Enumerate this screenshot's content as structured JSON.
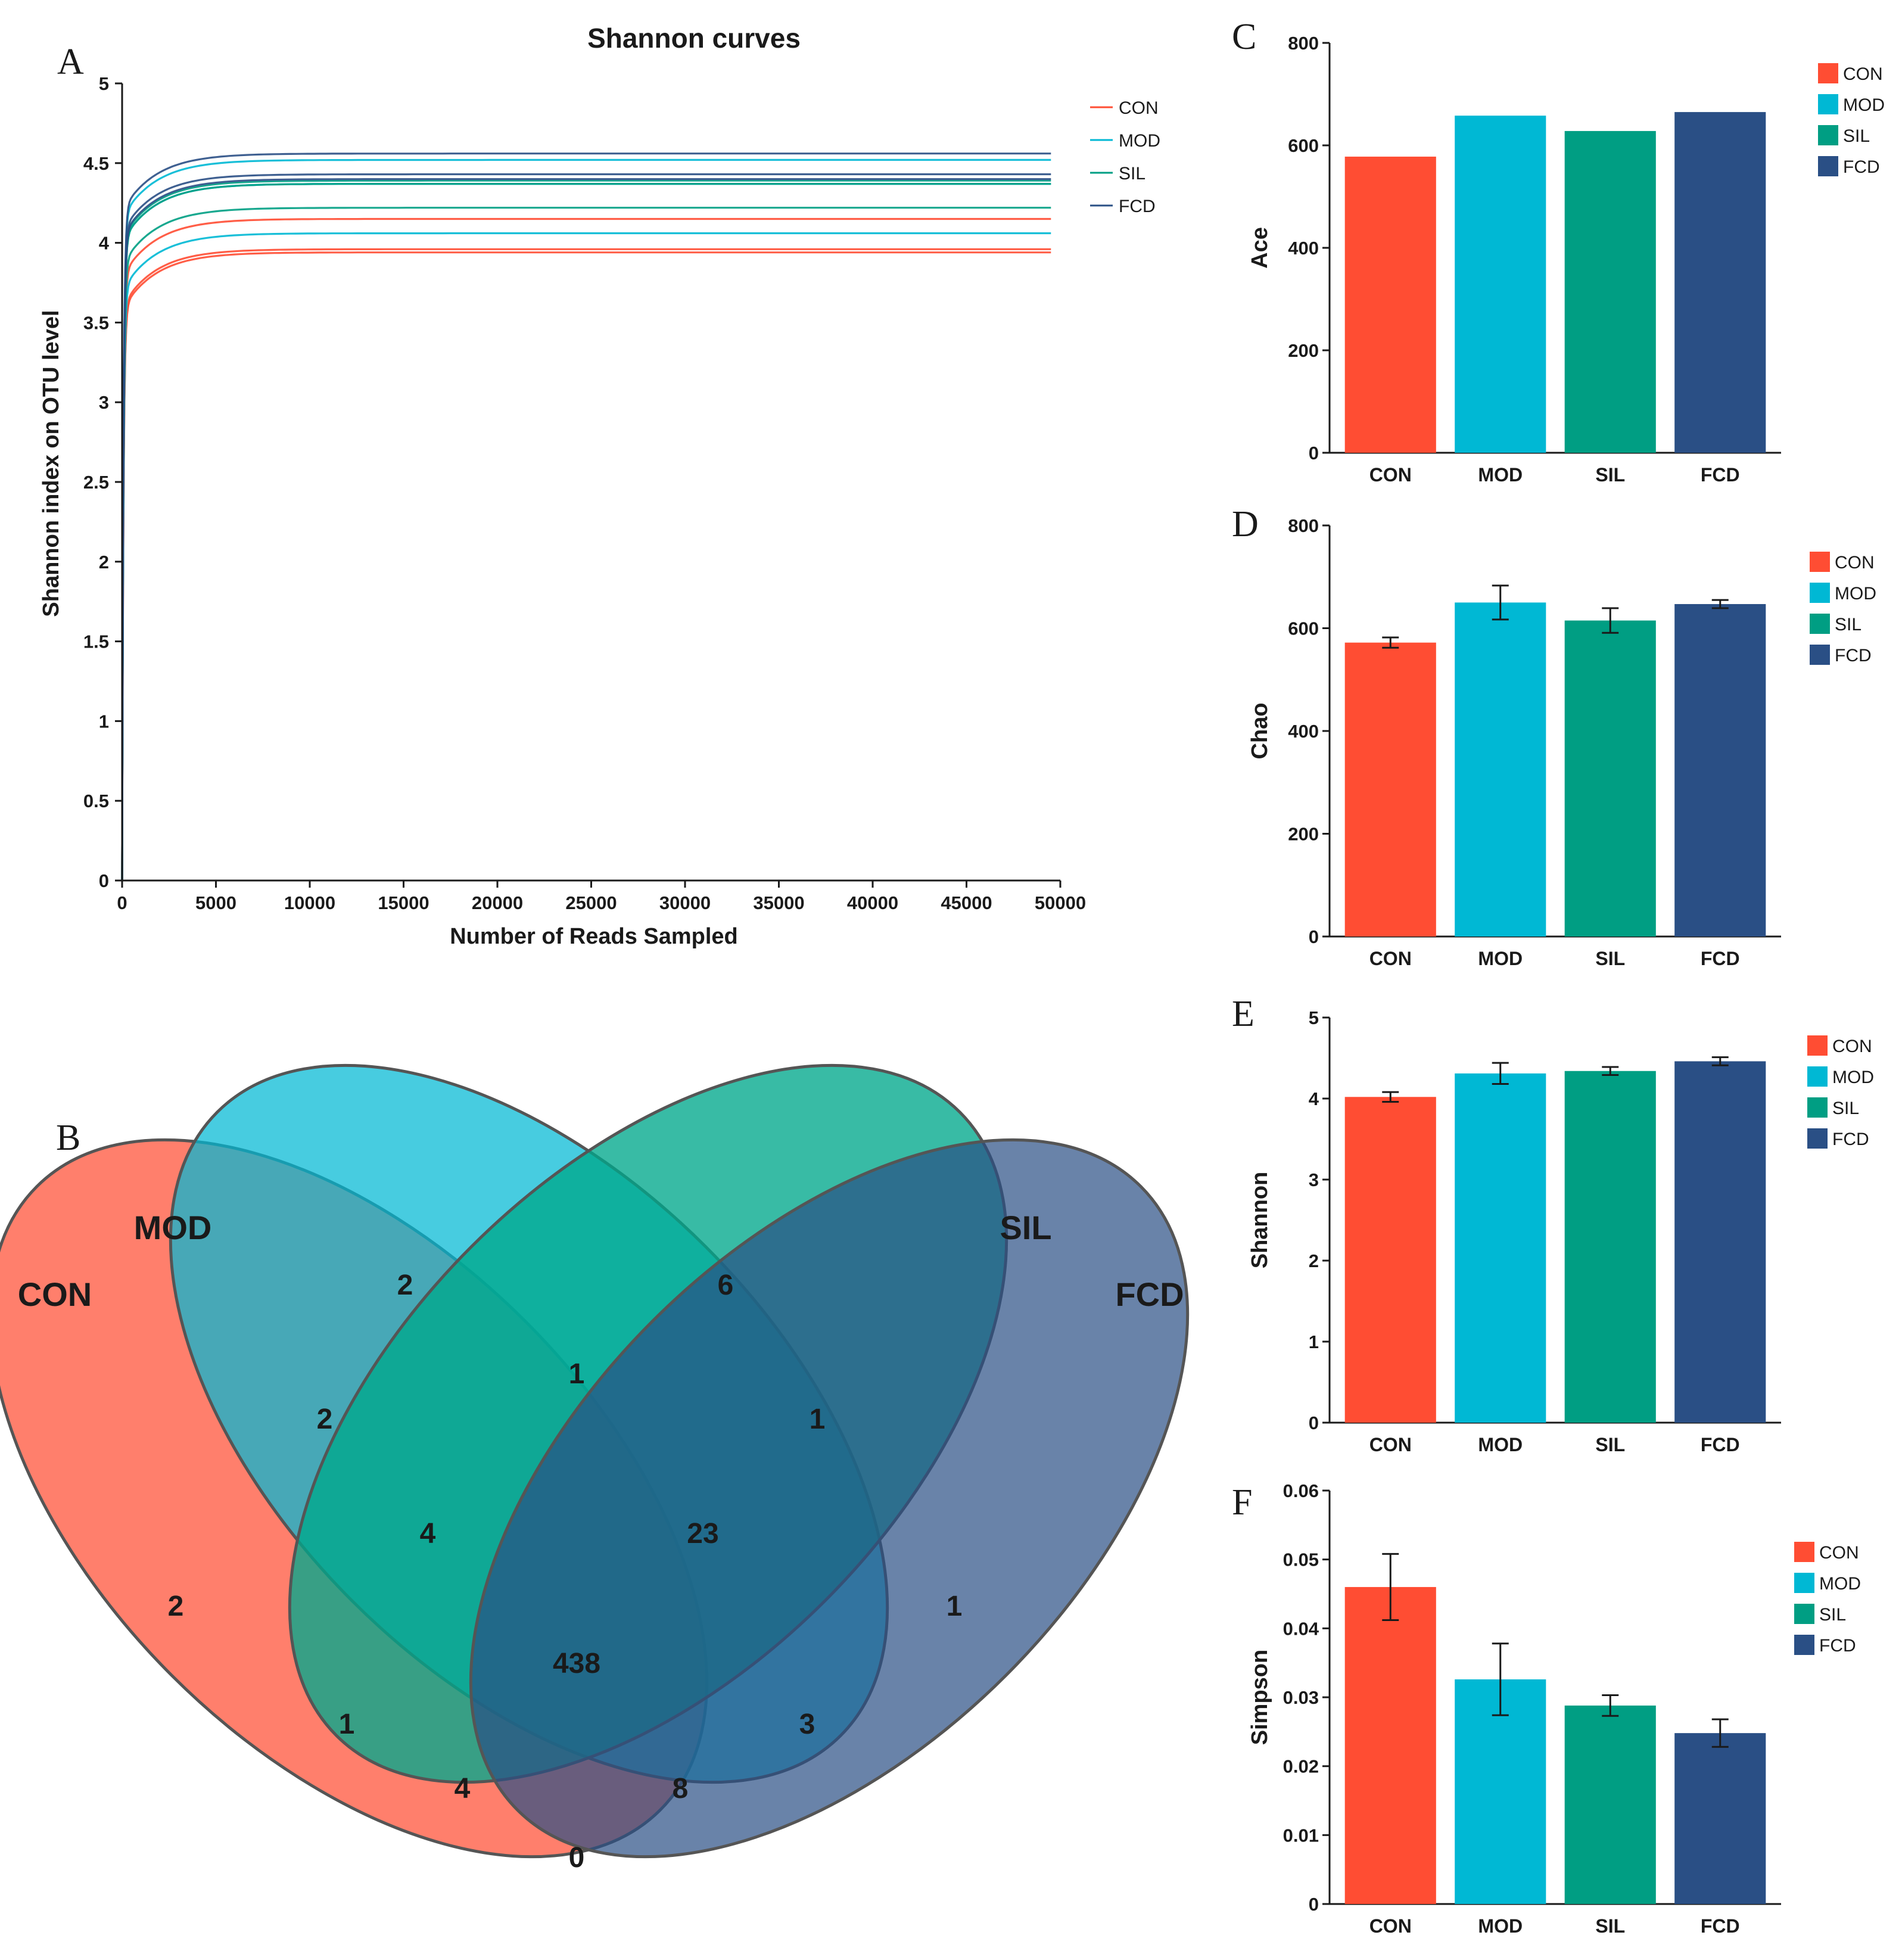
{
  "panel_letters": {
    "a": "A",
    "b": "B",
    "c": "C",
    "d": "D",
    "e": "E",
    "f": "F"
  },
  "colors": {
    "CON": "#ff4d33",
    "MOD": "#00b8d4",
    "SIL": "#009e83",
    "FCD": "#2a4f85"
  },
  "chart_data": [
    {
      "type": "line",
      "title": "Shannon curves",
      "xlabel": "Number of Reads Sampled",
      "ylabel": "Shannon index on OTU level",
      "xlim": [
        0,
        50000
      ],
      "ylim": [
        0,
        5
      ],
      "xticks": [
        "0",
        "5000",
        "10000",
        "15000",
        "20000",
        "25000",
        "30000",
        "35000",
        "40000",
        "45000",
        "50000"
      ],
      "yticks": [
        "0",
        "0.5",
        "1",
        "1.5",
        "2",
        "2.5",
        "3",
        "3.5",
        "4",
        "4.5",
        "5"
      ],
      "legend": [
        "CON",
        "MOD",
        "SIL",
        "FCD"
      ],
      "x_end": 49500,
      "series": [
        {
          "name": "CON",
          "plateaus": [
            3.94,
            3.96,
            4.15
          ]
        },
        {
          "name": "MOD",
          "plateaus": [
            4.06,
            4.37,
            4.52
          ]
        },
        {
          "name": "SIL",
          "plateaus": [
            4.22,
            4.37,
            4.39
          ]
        },
        {
          "name": "FCD",
          "plateaus": [
            4.4,
            4.43,
            4.56
          ]
        }
      ]
    },
    {
      "type": "bar",
      "ylabel": "Ace",
      "ylim": [
        0,
        800
      ],
      "yticks": [
        "0",
        "200",
        "400",
        "600",
        "800"
      ],
      "categories": [
        "CON",
        "MOD",
        "SIL",
        "FCD"
      ],
      "values": [
        578,
        658,
        628,
        665
      ],
      "errors": null,
      "legend": [
        "CON",
        "MOD",
        "SIL",
        "FCD"
      ]
    },
    {
      "type": "bar",
      "ylabel": "Chao",
      "ylim": [
        0,
        800
      ],
      "yticks": [
        "0",
        "200",
        "400",
        "600",
        "800"
      ],
      "categories": [
        "CON",
        "MOD",
        "SIL",
        "FCD"
      ],
      "values": [
        572,
        650,
        615,
        647
      ],
      "errors": [
        10,
        33,
        24,
        8
      ],
      "legend": [
        "CON",
        "MOD",
        "SIL",
        "FCD"
      ]
    },
    {
      "type": "bar",
      "ylabel": "Shannon",
      "ylim": [
        0,
        5
      ],
      "yticks": [
        "0",
        "1",
        "2",
        "3",
        "4",
        "5"
      ],
      "categories": [
        "CON",
        "MOD",
        "SIL",
        "FCD"
      ],
      "values": [
        4.02,
        4.31,
        4.34,
        4.46
      ],
      "errors": [
        0.06,
        0.13,
        0.05,
        0.05
      ],
      "legend": [
        "CON",
        "MOD",
        "SIL",
        "FCD"
      ]
    },
    {
      "type": "bar",
      "ylabel": "Simpson",
      "ylim": [
        0,
        0.06
      ],
      "yticks": [
        "0",
        "0.01",
        "0.02",
        "0.03",
        "0.04",
        "0.05",
        "0.06"
      ],
      "categories": [
        "CON",
        "MOD",
        "SIL",
        "FCD"
      ],
      "values": [
        0.046,
        0.0326,
        0.0288,
        0.0248
      ],
      "errors": [
        0.0048,
        0.0052,
        0.0015,
        0.002
      ],
      "legend": [
        "CON",
        "MOD",
        "SIL",
        "FCD"
      ]
    }
  ],
  "venn": {
    "sets": [
      "CON",
      "MOD",
      "SIL",
      "FCD"
    ],
    "regions": {
      "con_only": "2",
      "mod_only": "2",
      "sil_only": "6",
      "fcd_only": "1",
      "con_mod": "2",
      "mod_sil": "1",
      "sil_fcd": "1",
      "con_mod_sil": "4",
      "mod_sil_fcd": "23",
      "all": "438",
      "con_sil": "1",
      "mod_fcd": "3",
      "con_sil_fcd": "4",
      "con_mod_fcd": "8",
      "con_fcd": "0"
    }
  }
}
